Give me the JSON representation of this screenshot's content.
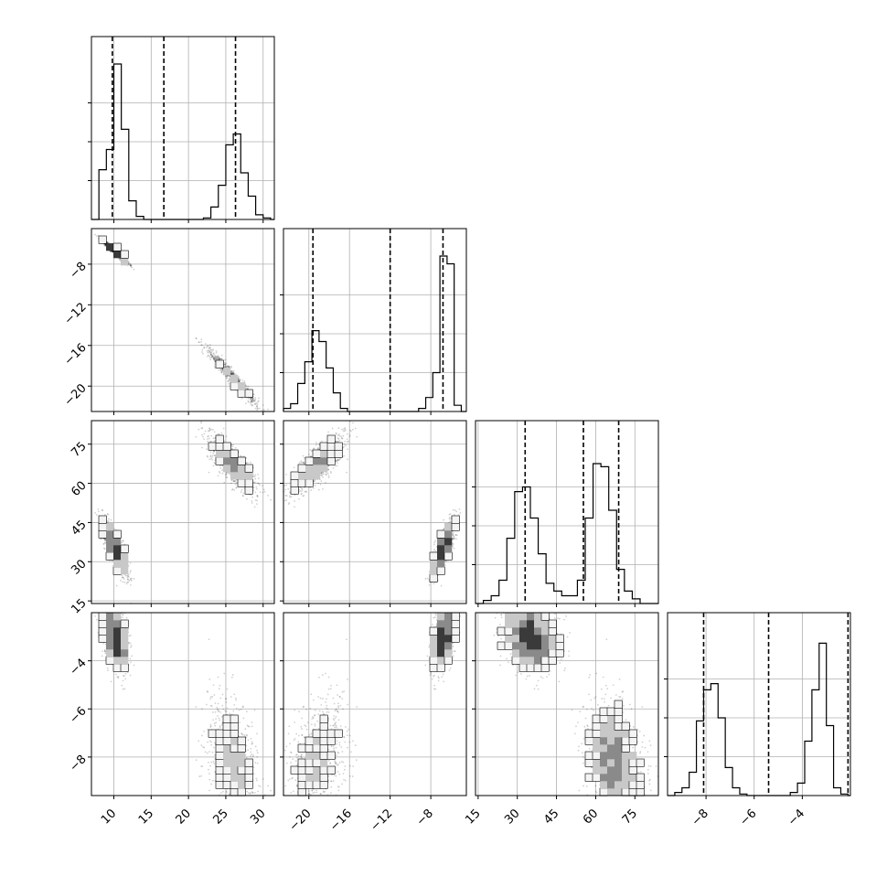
{
  "chart_data": {
    "type": "corner",
    "grid": true,
    "parameters": [
      {
        "range": [
          7,
          31.5
        ],
        "ticks": [
          10,
          15,
          20,
          25,
          30
        ],
        "tick_labels": [
          "10",
          "15",
          "20",
          "25",
          "30"
        ],
        "quantiles": [
          9.8,
          16.7,
          26.3
        ],
        "hist_peak": 1.0,
        "hist": {
          "edges": [
            7.0,
            8.0,
            9.0,
            10.0,
            11.0,
            12.0,
            13.0,
            14.0,
            15.0,
            16.0,
            17.0,
            18.0,
            19.0,
            20.0,
            21.0,
            22.0,
            23.0,
            24.0,
            25.0,
            26.0,
            27.0,
            28.0,
            29.0,
            30.0,
            31.0,
            31.5
          ],
          "counts": [
            0.0,
            0.32,
            0.45,
            1.0,
            0.58,
            0.12,
            0.02,
            0.0,
            0.0,
            0.0,
            0.0,
            0.0,
            0.0,
            0.0,
            0.0,
            0.01,
            0.08,
            0.22,
            0.48,
            0.55,
            0.3,
            0.15,
            0.03,
            0.01,
            0.0
          ]
        }
      },
      {
        "range": [
          -22.5,
          -4.5
        ],
        "ticks": [
          -20,
          -16,
          -12,
          -8
        ],
        "tick_labels": [
          "−20",
          "−16",
          "−12",
          "−8"
        ],
        "quantiles": [
          -19.6,
          -12.0,
          -6.8
        ],
        "hist_peak": 1.0,
        "hist": {
          "edges": [
            -22.5,
            -21.8,
            -21.1,
            -20.4,
            -19.7,
            -19.0,
            -18.3,
            -17.6,
            -16.9,
            -16.2,
            -15.5,
            -14.8,
            -14.1,
            -13.4,
            -12.7,
            -12.0,
            -11.3,
            -10.6,
            -9.9,
            -9.2,
            -8.5,
            -7.8,
            -7.1,
            -6.4,
            -5.7,
            -5.0,
            -4.5
          ],
          "counts": [
            0.02,
            0.05,
            0.18,
            0.32,
            0.52,
            0.45,
            0.28,
            0.12,
            0.02,
            0.0,
            0.0,
            0.0,
            0.0,
            0.0,
            0.0,
            0.0,
            0.0,
            0.0,
            0.0,
            0.02,
            0.09,
            0.25,
            1.0,
            0.95,
            0.04,
            0.0
          ]
        }
      },
      {
        "range": [
          14,
          84
        ],
        "ticks": [
          15,
          30,
          45,
          60,
          75
        ],
        "tick_labels": [
          "15",
          "30",
          "45",
          "60",
          "75"
        ],
        "quantiles": [
          33.0,
          55.3,
          68.8
        ],
        "hist_peak": 1.0,
        "hist": {
          "edges": [
            14.0,
            17.0,
            20.0,
            23.0,
            26.0,
            29.0,
            32.0,
            35.0,
            38.0,
            41.0,
            44.0,
            47.0,
            50.0,
            53.0,
            56.0,
            59.0,
            62.0,
            65.0,
            68.0,
            71.0,
            74.0,
            77.0,
            80.0,
            83.0,
            84.0
          ],
          "counts": [
            0.0,
            0.02,
            0.05,
            0.15,
            0.42,
            0.72,
            0.75,
            0.55,
            0.32,
            0.13,
            0.08,
            0.05,
            0.05,
            0.15,
            0.55,
            0.9,
            0.88,
            0.6,
            0.22,
            0.08,
            0.03,
            0.0,
            0.0,
            0.0
          ]
        }
      },
      {
        "range": [
          -9.6,
          -2.0
        ],
        "ticks": [
          -8,
          -6,
          -4
        ],
        "tick_labels": [
          "−8",
          "−6",
          "−4"
        ],
        "quantiles": [
          -8.1,
          -5.4,
          -2.1
        ],
        "hist_peak": 1.0,
        "hist": {
          "edges": [
            -9.6,
            -9.3,
            -9.0,
            -8.7,
            -8.4,
            -8.1,
            -7.8,
            -7.5,
            -7.2,
            -6.9,
            -6.6,
            -6.3,
            -6.0,
            -5.7,
            -5.4,
            -5.1,
            -4.8,
            -4.5,
            -4.2,
            -3.9,
            -3.6,
            -3.3,
            -3.0,
            -2.7,
            -2.4,
            -2.1,
            -2.0
          ],
          "counts": [
            0.0,
            0.02,
            0.05,
            0.15,
            0.48,
            0.68,
            0.72,
            0.5,
            0.18,
            0.05,
            0.01,
            0.0,
            0.0,
            0.0,
            0.0,
            0.0,
            0.0,
            0.02,
            0.08,
            0.35,
            0.68,
            0.98,
            0.45,
            0.05,
            0.01,
            0.0
          ]
        }
      }
    ],
    "modes": [
      {
        "center": [
          10.2,
          -6.8,
          35.0,
          -3.0
        ],
        "sd": [
          0.9,
          0.6,
          5.5,
          0.35
        ]
      },
      {
        "center": [
          26.0,
          -19.2,
          67.0,
          -8.1
        ],
        "sd": [
          1.7,
          1.4,
          5.5,
          0.55
        ]
      }
    ],
    "correlations": [
      [
        1.0,
        -0.97,
        -0.8,
        -0.95
      ],
      [
        -0.97,
        1.0,
        0.8,
        0.95
      ],
      [
        -0.8,
        0.8,
        1.0,
        -0.4
      ],
      [
        -0.95,
        0.95,
        -0.4,
        1.0
      ]
    ]
  }
}
